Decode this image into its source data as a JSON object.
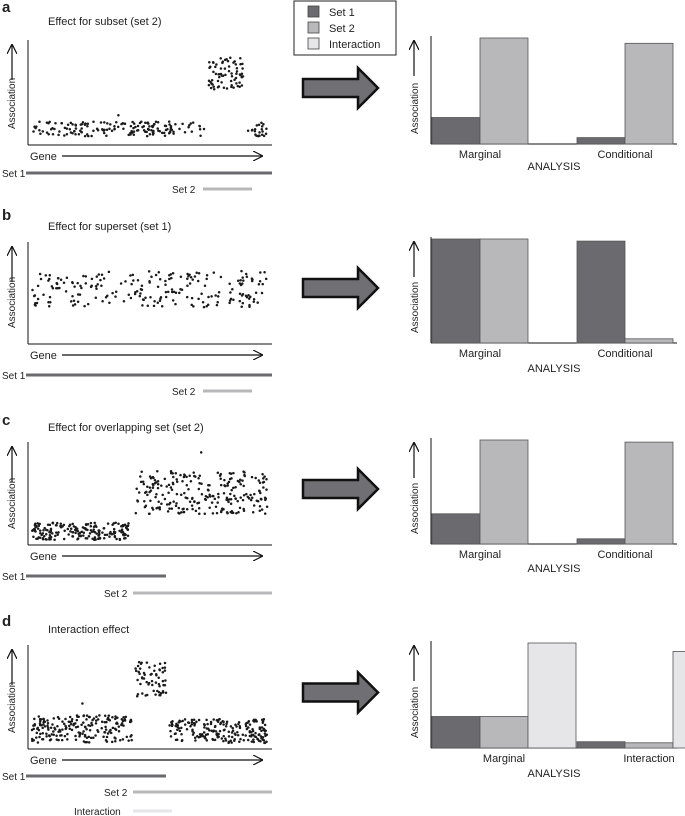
{
  "colors": {
    "set1": "#6b6b6f",
    "set2": "#b8b8ba",
    "interaction": "#e6e6e8",
    "axis": "#111111",
    "arrow_fill": "#707074",
    "dots": "#1a1a1a"
  },
  "legend": {
    "items": [
      {
        "label": "Set 1",
        "color_key": "set1"
      },
      {
        "label": "Set 2",
        "color_key": "set2"
      },
      {
        "label": "Interaction",
        "color_key": "interaction"
      }
    ]
  },
  "labels": {
    "association": "Association",
    "gene": "Gene",
    "analysis": "ANALYSIS",
    "set1": "Set 1",
    "set2": "Set 2",
    "interaction": "Interaction"
  },
  "panels": [
    {
      "letter": "a",
      "title": "Effect for subset (set 2)",
      "scatter_groups": [
        {
          "from": 0.0,
          "to": 0.72,
          "level": 0.13,
          "spread": 0.09,
          "count": 160,
          "outlier": true
        },
        {
          "from": 0.735,
          "to": 0.88,
          "level": 0.68,
          "spread": 0.2,
          "count": 70
        },
        {
          "from": 0.9,
          "to": 0.98,
          "level": 0.13,
          "spread": 0.09,
          "count": 22
        }
      ],
      "bars": {
        "categories": [
          "Marginal",
          "Conditional"
        ],
        "series": [
          {
            "name": "Set 1",
            "color_key": "set1",
            "values": [
              0.25,
              0.06
            ]
          },
          {
            "name": "Set 2",
            "color_key": "set2",
            "values": [
              1.0,
              0.95
            ]
          }
        ]
      }
    },
    {
      "letter": "b",
      "title": "Effect for superset (set 1)",
      "scatter_groups": [
        {
          "from": 0.0,
          "to": 0.98,
          "level": 0.53,
          "spread": 0.23,
          "count": 210
        }
      ],
      "bars": {
        "categories": [
          "Marginal",
          "Conditional"
        ],
        "series": [
          {
            "name": "Set 1",
            "color_key": "set1",
            "values": [
              1.0,
              0.98
            ]
          },
          {
            "name": "Set 2",
            "color_key": "set2",
            "values": [
              1.0,
              0.04
            ]
          }
        ]
      }
    },
    {
      "letter": "c",
      "title": "Effect for overlapping set (set 2)",
      "scatter_groups": [
        {
          "from": 0.0,
          "to": 0.415,
          "level": 0.11,
          "spread": 0.11,
          "count": 190
        },
        {
          "from": 0.43,
          "to": 0.98,
          "level": 0.5,
          "spread": 0.27,
          "count": 240,
          "outlier": true
        }
      ],
      "bars": {
        "categories": [
          "Marginal",
          "Conditional"
        ],
        "series": [
          {
            "name": "Set 1",
            "color_key": "set1",
            "values": [
              0.29,
              0.05
            ]
          },
          {
            "name": "Set 2",
            "color_key": "set2",
            "values": [
              1.0,
              0.98
            ]
          }
        ]
      }
    },
    {
      "letter": "d",
      "title": "Interaction effect",
      "scatter_groups": [
        {
          "from": 0.0,
          "to": 0.42,
          "level": 0.17,
          "spread": 0.17,
          "count": 200,
          "outlier": true
        },
        {
          "from": 0.43,
          "to": 0.56,
          "level": 0.67,
          "spread": 0.22,
          "count": 60
        },
        {
          "from": 0.57,
          "to": 0.98,
          "level": 0.15,
          "spread": 0.15,
          "count": 200
        }
      ],
      "bars": {
        "categories": [
          "Marginal",
          "Interaction"
        ],
        "series": [
          {
            "name": "Set 1",
            "color_key": "set1",
            "values": [
              0.3,
              0.06
            ]
          },
          {
            "name": "Set 2",
            "color_key": "set2",
            "values": [
              0.3,
              0.05
            ]
          },
          {
            "name": "Interaction",
            "color_key": "interaction",
            "values": [
              1.0,
              0.92
            ]
          }
        ]
      }
    }
  ]
}
